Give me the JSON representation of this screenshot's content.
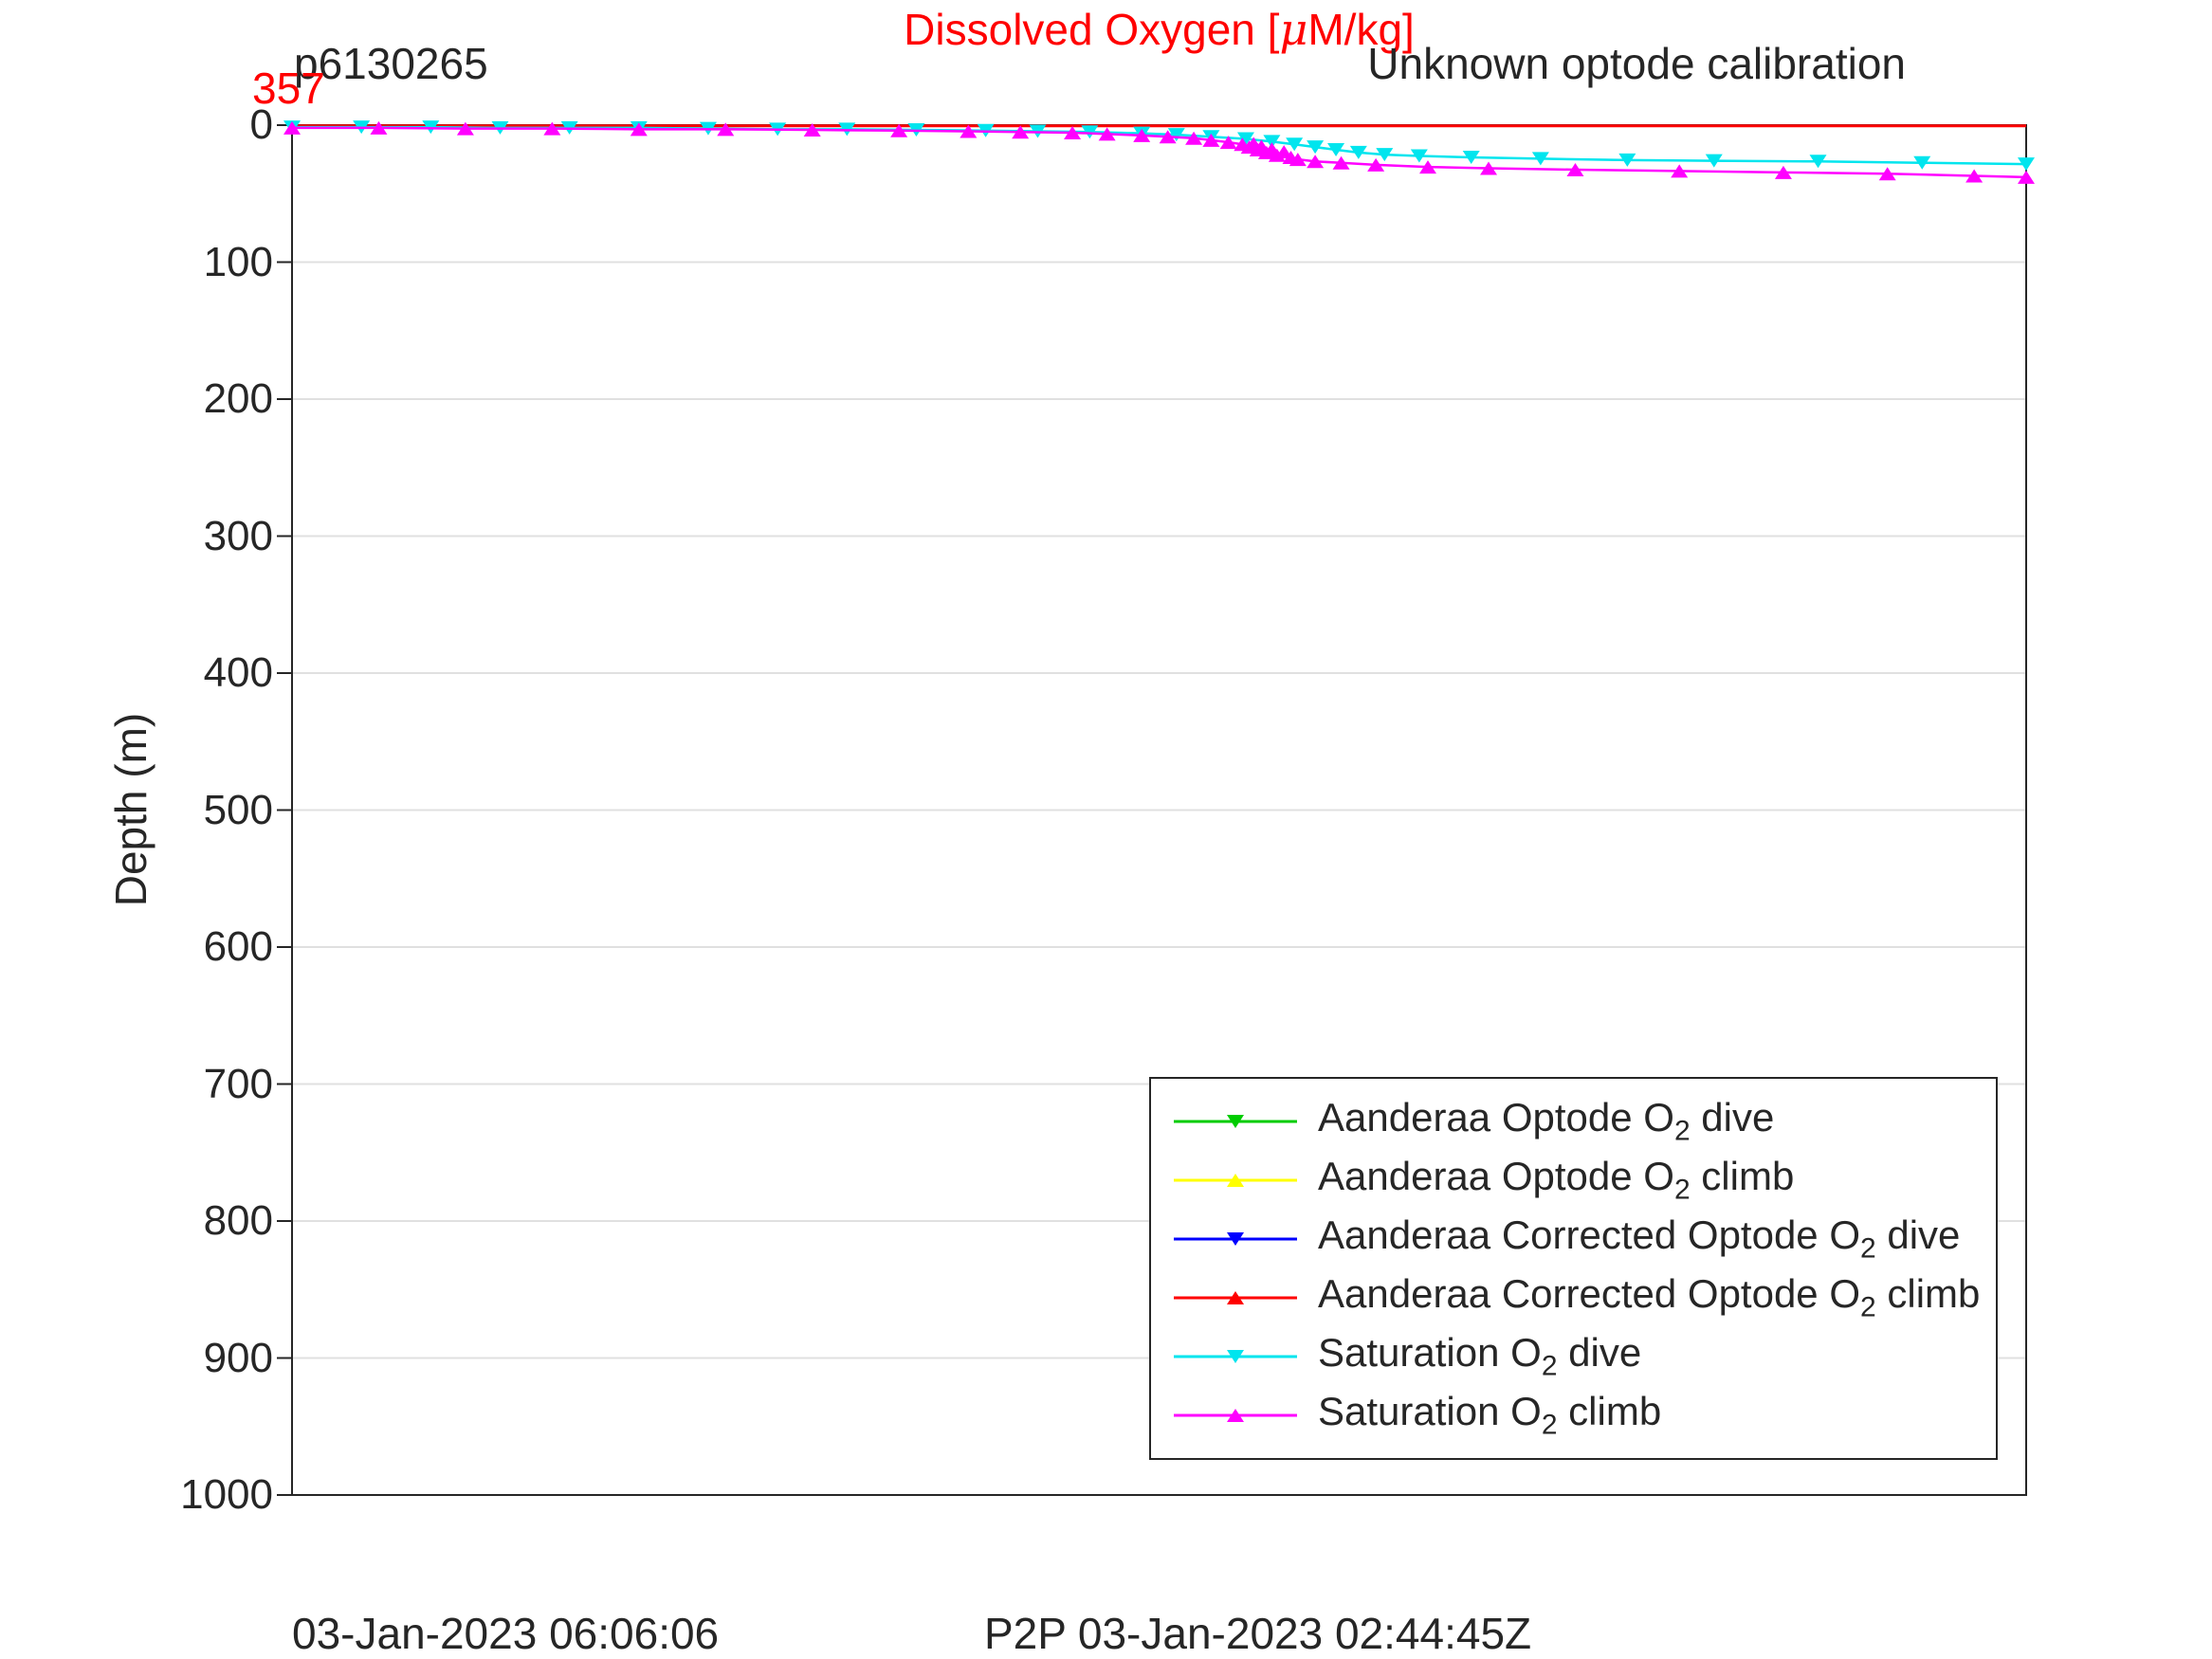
{
  "header": {
    "station_id": "p6130265",
    "title_pre": "Dissolved Oxygen [",
    "title_mu": "μ",
    "title_post": "M/kg]",
    "title_color": "#ff0000",
    "calibration_note": "Unknown optode calibration",
    "surface_value": "357",
    "surface_value_color": "#ff0000"
  },
  "footer": {
    "left_timestamp": "03-Jan-2023 06:06:06",
    "center_timestamp": "P2P 03-Jan-2023 02:44:45Z"
  },
  "chart_data": {
    "type": "line",
    "title": "Dissolved Oxygen [μM/kg]",
    "xlabel": "",
    "ylabel": "Depth (m)",
    "ylim": [
      0,
      1000
    ],
    "y_axis_reversed": true,
    "yticks": [
      0,
      100,
      200,
      300,
      400,
      500,
      600,
      700,
      800,
      900,
      1000
    ],
    "x_axis_note": "no x tick labels shown; series x values are fractions (0-1) of axis width",
    "grid": "horizontal gridlines only",
    "axis_color": "#262626",
    "grid_color": "#e0e0e0",
    "legend_position": "lower right inside plot",
    "series": [
      {
        "key": "aanderaa-optode-o2-dive",
        "name_pre": "Aanderaa Optode O",
        "name_sub": "2",
        "name_post": " dive",
        "color": "#00cc00",
        "marker": "down",
        "show_markers": true,
        "visible_in_plot": false,
        "points": []
      },
      {
        "key": "aanderaa-optode-o2-climb",
        "name_pre": "Aanderaa Optode O",
        "name_sub": "2",
        "name_post": " climb",
        "color": "#ffff00",
        "marker": "up",
        "show_markers": true,
        "visible_in_plot": false,
        "points": []
      },
      {
        "key": "aanderaa-corrected-optode-o2-dive",
        "name_pre": "Aanderaa Corrected Optode O",
        "name_sub": "2",
        "name_post": " dive",
        "color": "#0000ff",
        "marker": "down",
        "show_markers": true,
        "visible_in_plot": false,
        "points": []
      },
      {
        "key": "aanderaa-corrected-optode-o2-climb",
        "name_pre": "Aanderaa Corrected Optode O",
        "name_sub": "2",
        "name_post": " climb",
        "color": "#ff0000",
        "marker": "up",
        "show_markers": false,
        "line_width": 3,
        "visible_in_plot": true,
        "points": [
          [
            0.0,
            0.5
          ],
          [
            1.0,
            0.5
          ]
        ]
      },
      {
        "key": "saturation-o2-dive",
        "name_pre": "Saturation O",
        "name_sub": "2",
        "name_post": " dive",
        "color": "#00e5ee",
        "marker": "down",
        "show_markers": true,
        "line_width": 2.5,
        "visible_in_plot": true,
        "points": [
          [
            0.0,
            1.5
          ],
          [
            0.04,
            1.5
          ],
          [
            0.08,
            1.5
          ],
          [
            0.12,
            2
          ],
          [
            0.16,
            2
          ],
          [
            0.2,
            2
          ],
          [
            0.24,
            2.5
          ],
          [
            0.28,
            3
          ],
          [
            0.32,
            3
          ],
          [
            0.36,
            3.5
          ],
          [
            0.4,
            4
          ],
          [
            0.43,
            4.5
          ],
          [
            0.46,
            5
          ],
          [
            0.49,
            6
          ],
          [
            0.51,
            7
          ],
          [
            0.53,
            8.5
          ],
          [
            0.55,
            10
          ],
          [
            0.565,
            12
          ],
          [
            0.578,
            14
          ],
          [
            0.59,
            16
          ],
          [
            0.602,
            18
          ],
          [
            0.615,
            20
          ],
          [
            0.63,
            21.5
          ],
          [
            0.65,
            22.5
          ],
          [
            0.68,
            23.5
          ],
          [
            0.72,
            24.5
          ],
          [
            0.77,
            25.5
          ],
          [
            0.82,
            26
          ],
          [
            0.88,
            26.5
          ],
          [
            0.94,
            27.5
          ],
          [
            1.0,
            28.5
          ]
        ]
      },
      {
        "key": "saturation-o2-climb",
        "name_pre": "Saturation O",
        "name_sub": "2",
        "name_post": " climb",
        "color": "#ff00ff",
        "marker": "up",
        "show_markers": true,
        "line_width": 2.5,
        "visible_in_plot": true,
        "points": [
          [
            0.0,
            2
          ],
          [
            0.05,
            2
          ],
          [
            0.1,
            2.5
          ],
          [
            0.15,
            2.5
          ],
          [
            0.2,
            3
          ],
          [
            0.25,
            3
          ],
          [
            0.3,
            3.5
          ],
          [
            0.35,
            4
          ],
          [
            0.39,
            4.5
          ],
          [
            0.42,
            5
          ],
          [
            0.45,
            5.5
          ],
          [
            0.47,
            6.5
          ],
          [
            0.49,
            7.5
          ],
          [
            0.505,
            8.5
          ],
          [
            0.52,
            9.5
          ],
          [
            0.53,
            11
          ],
          [
            0.54,
            12.5
          ],
          [
            0.548,
            14
          ],
          [
            0.552,
            16
          ],
          [
            0.5545,
            13.5
          ],
          [
            0.557,
            18
          ],
          [
            0.559,
            15.5
          ],
          [
            0.562,
            20
          ],
          [
            0.565,
            17.5
          ],
          [
            0.568,
            22
          ],
          [
            0.572,
            19.5
          ],
          [
            0.576,
            23.5
          ],
          [
            0.58,
            25
          ],
          [
            0.59,
            26.5
          ],
          [
            0.605,
            27.5
          ],
          [
            0.625,
            29
          ],
          [
            0.655,
            30.5
          ],
          [
            0.69,
            31.5
          ],
          [
            0.74,
            32.5
          ],
          [
            0.8,
            33.5
          ],
          [
            0.86,
            34.5
          ],
          [
            0.92,
            35.5
          ],
          [
            0.97,
            37
          ],
          [
            1.0,
            38
          ]
        ]
      }
    ]
  }
}
